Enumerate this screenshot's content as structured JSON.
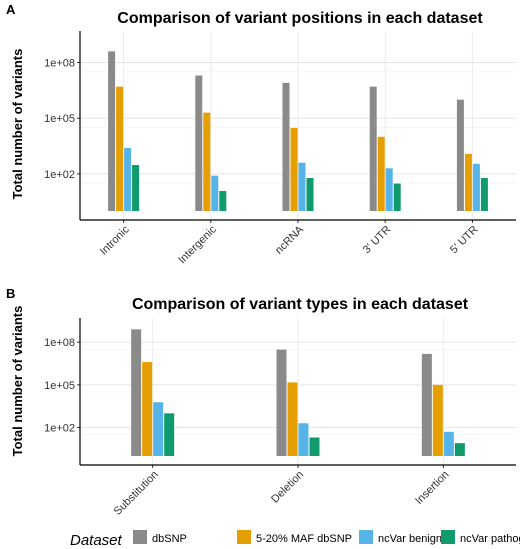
{
  "figure": {
    "legend": {
      "title": "Dataset",
      "entries": [
        {
          "label": "dbSNP",
          "color": "#8a8a8a"
        },
        {
          "label": "5-20% MAF dbSNP",
          "color": "#e69f00"
        },
        {
          "label": "ncVar benign",
          "color": "#56b4e9"
        },
        {
          "label": "ncVar pathogenic",
          "color": "#0f9b6c"
        }
      ]
    }
  },
  "chart_data": [
    {
      "panel_label": "A",
      "type": "bar",
      "title": "Comparison of variant positions in each dataset",
      "xlabel": "",
      "ylabel": "Total number of variants",
      "yscale": "log",
      "ylim": [
        1,
        5000000000
      ],
      "yticks": [
        100,
        100000,
        100000000
      ],
      "ytick_labels": [
        "1e+02",
        "1e+05",
        "1e+08"
      ],
      "grid": true,
      "categories": [
        "Intronic",
        "Intergenic",
        "ncRNA",
        "3' UTR",
        "5' UTR"
      ],
      "series": [
        {
          "name": "dbSNP",
          "values": [
            400000000,
            20000000,
            8000000,
            5000000,
            1000000
          ]
        },
        {
          "name": "5-20% MAF dbSNP",
          "values": [
            5000000,
            200000,
            30000,
            10000,
            1200
          ]
        },
        {
          "name": "ncVar benign",
          "values": [
            2500,
            80,
            400,
            200,
            350
          ]
        },
        {
          "name": "ncVar pathogenic",
          "values": [
            300,
            12,
            60,
            30,
            60
          ]
        }
      ]
    },
    {
      "panel_label": "B",
      "type": "bar",
      "title": "Comparison of variant types in each dataset",
      "xlabel": "",
      "ylabel": "Total number of variants",
      "yscale": "log",
      "ylim": [
        1,
        5000000000
      ],
      "yticks": [
        100,
        100000,
        100000000
      ],
      "ytick_labels": [
        "1e+02",
        "1e+05",
        "1e+08"
      ],
      "grid": true,
      "categories": [
        "Substitution",
        "Deletion",
        "Insertion"
      ],
      "series": [
        {
          "name": "dbSNP",
          "values": [
            800000000,
            30000000,
            15000000
          ]
        },
        {
          "name": "5-20% MAF dbSNP",
          "values": [
            4000000,
            150000,
            100000
          ]
        },
        {
          "name": "ncVar benign",
          "values": [
            6000,
            200,
            50
          ]
        },
        {
          "name": "ncVar pathogenic",
          "values": [
            1000,
            20,
            8
          ]
        }
      ]
    }
  ]
}
